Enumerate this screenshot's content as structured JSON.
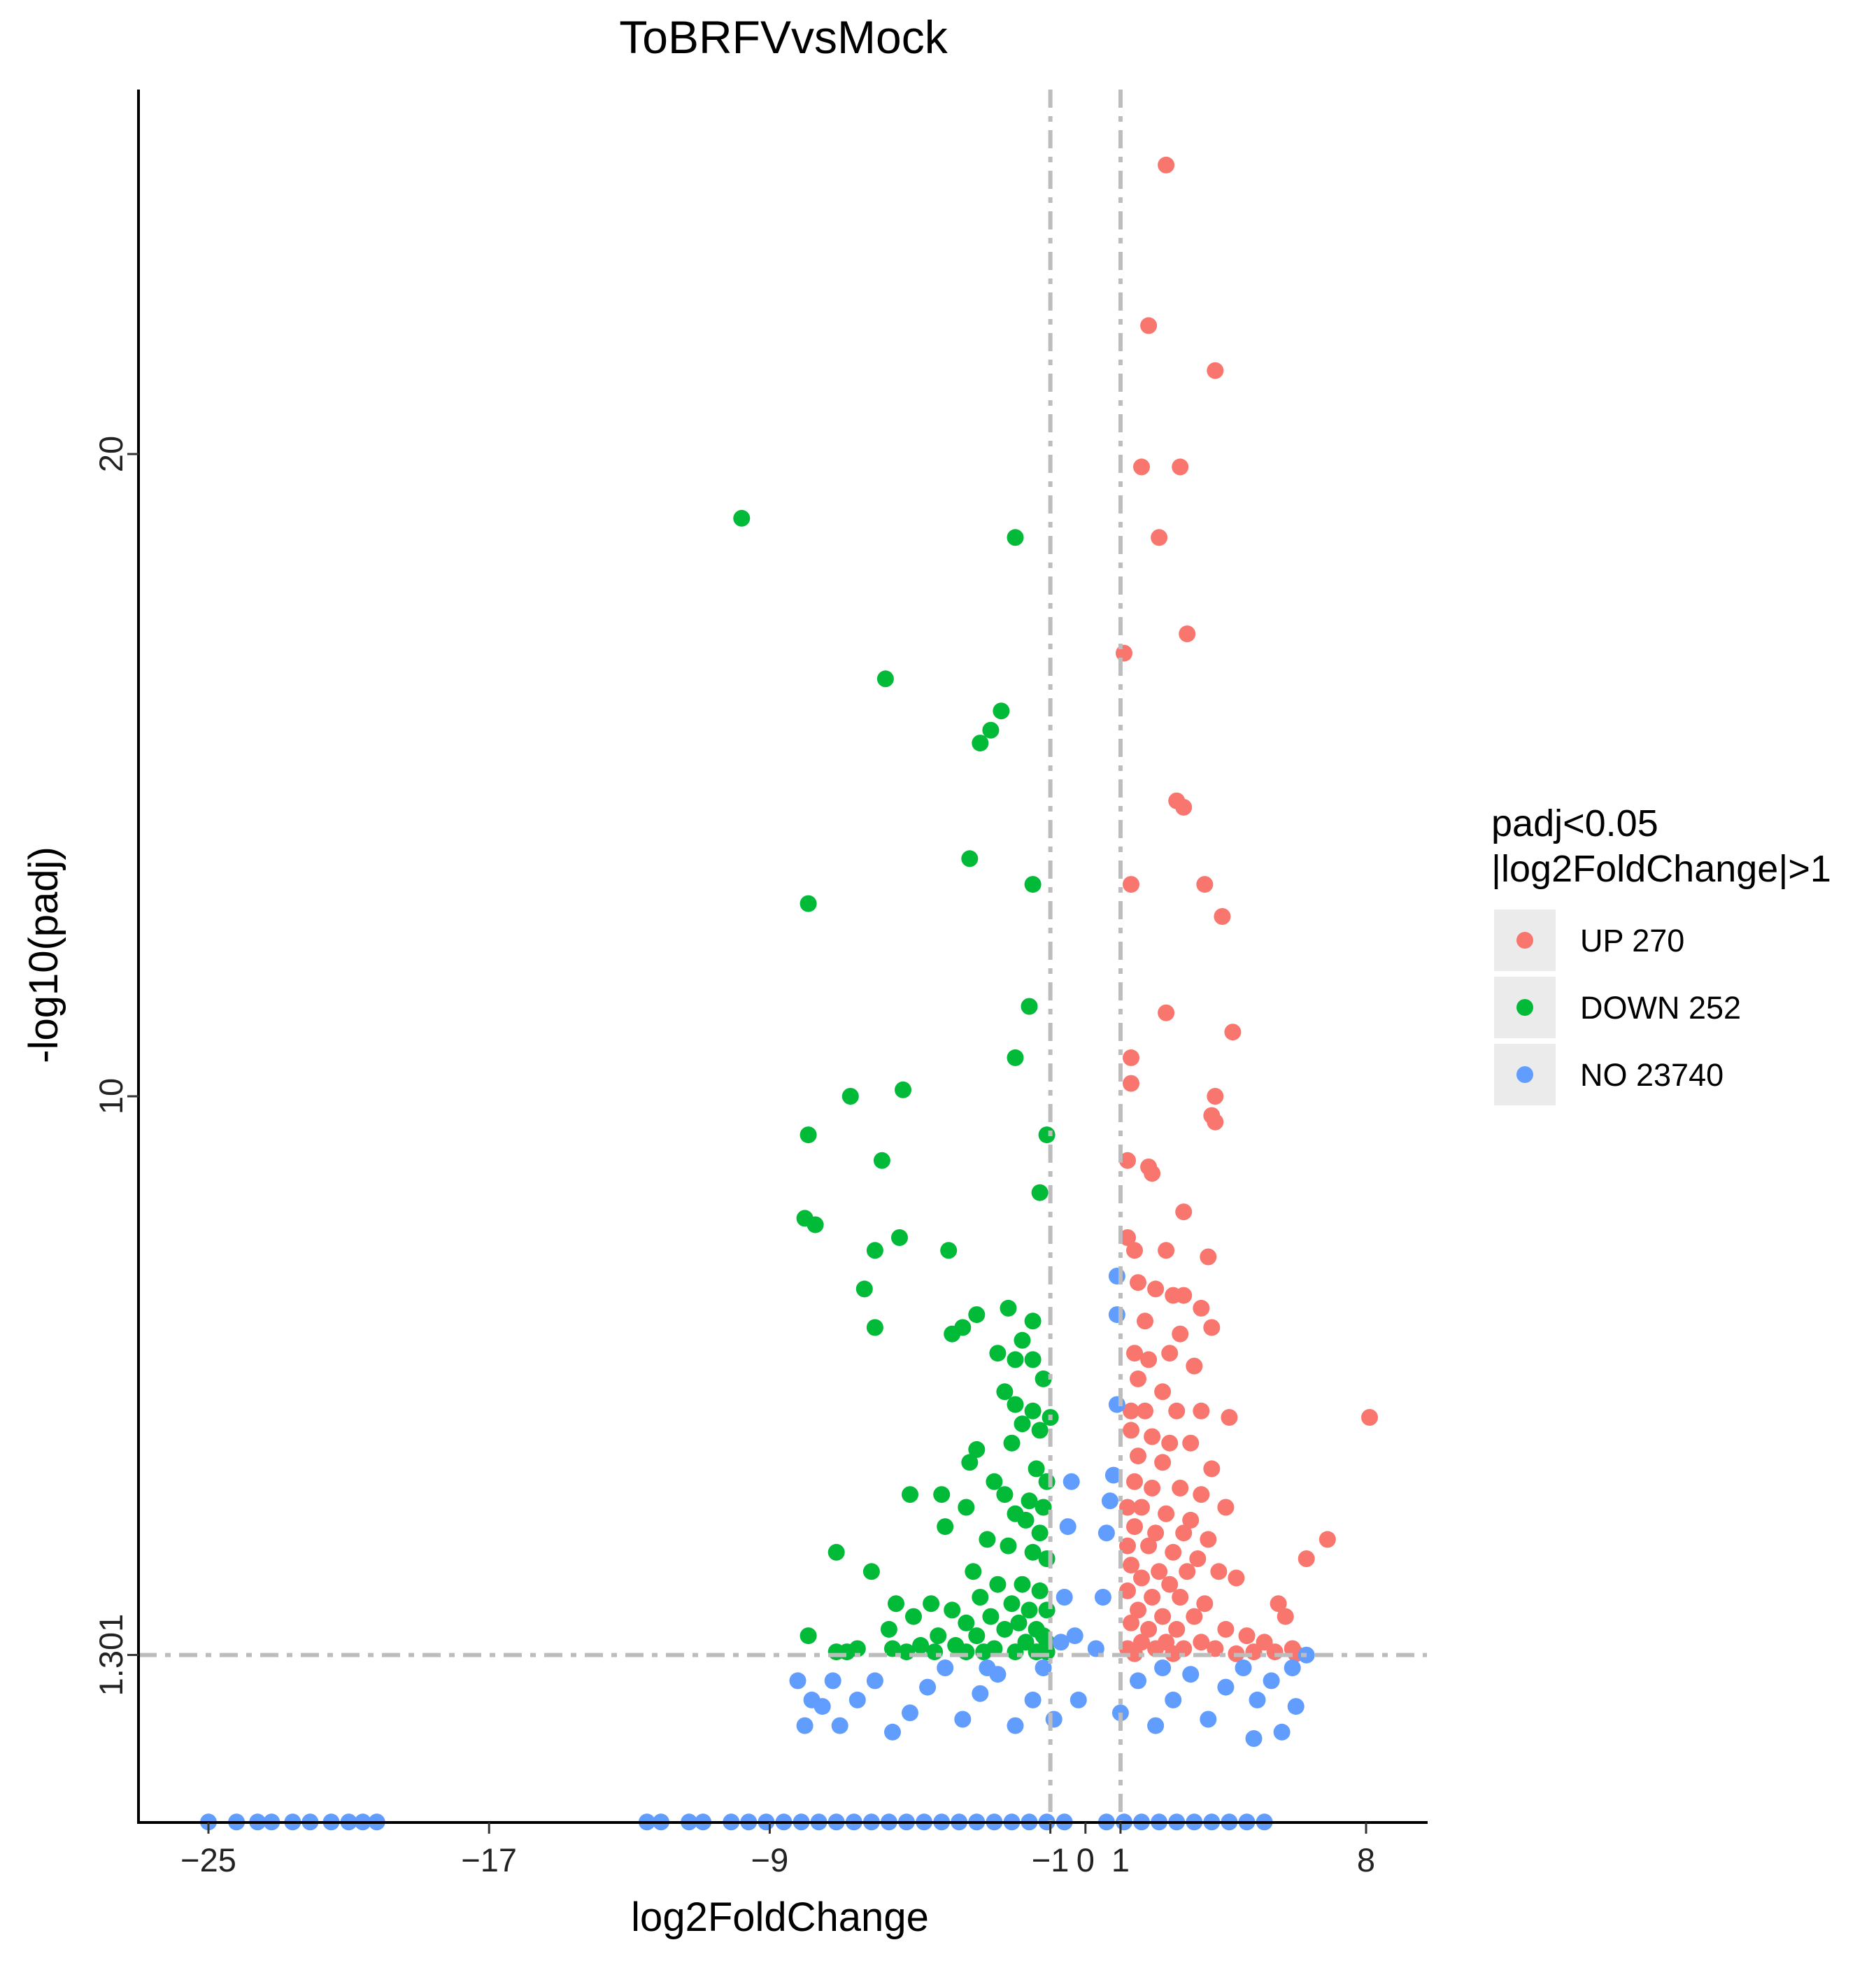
{
  "chart_data": {
    "type": "scatter",
    "title": "ToBRFVvsMock",
    "xlabel": "log2FoldChange",
    "ylabel": "-log10(padj)",
    "xlim": [
      -26.2,
      10.5
    ],
    "ylim": [
      -2.5,
      27.5
    ],
    "x_ticks": [
      -25,
      -17,
      -9,
      -1,
      0,
      1,
      8
    ],
    "x_tick_labels": [
      "−25",
      "−17",
      "−9",
      "−1",
      "0",
      "1",
      "8"
    ],
    "y_ticks": [
      1.301,
      10,
      20
    ],
    "y_tick_labels": [
      "1.301",
      "10",
      "20"
    ],
    "thresholds": {
      "log2FoldChange": [
        -1,
        1
      ],
      "neg_log10_padj": 1.301
    },
    "grid": false,
    "legend": {
      "title_lines": [
        "padj<0.05",
        "|log2FoldChange|>1"
      ],
      "placement": "right",
      "entries": [
        {
          "key": "UP",
          "label": "UP 270",
          "color": "#F8766D"
        },
        {
          "key": "DOWN",
          "label": "DOWN 252",
          "color": "#00BA38"
        },
        {
          "key": "NO",
          "label": "NO 23740",
          "color": "#619CFF"
        }
      ]
    },
    "series": [
      {
        "name": "UP 270",
        "color": "#F8766D",
        "points": [
          [
            2.3,
            24.5
          ],
          [
            1.8,
            22.0
          ],
          [
            3.7,
            21.3
          ],
          [
            1.6,
            19.8
          ],
          [
            2.7,
            19.8
          ],
          [
            2.1,
            18.7
          ],
          [
            2.9,
            17.2
          ],
          [
            1.1,
            16.9
          ],
          [
            2.6,
            14.6
          ],
          [
            2.8,
            14.5
          ],
          [
            1.3,
            13.3
          ],
          [
            3.4,
            13.3
          ],
          [
            3.9,
            12.8
          ],
          [
            2.3,
            11.3
          ],
          [
            4.2,
            11.0
          ],
          [
            1.3,
            10.6
          ],
          [
            1.3,
            10.2
          ],
          [
            3.7,
            10.0
          ],
          [
            3.6,
            9.7
          ],
          [
            3.7,
            9.6
          ],
          [
            1.2,
            9.0
          ],
          [
            1.8,
            8.9
          ],
          [
            1.9,
            8.8
          ],
          [
            2.8,
            8.2
          ],
          [
            1.2,
            7.8
          ],
          [
            1.4,
            7.6
          ],
          [
            2.3,
            7.6
          ],
          [
            3.5,
            7.5
          ],
          [
            1.5,
            7.1
          ],
          [
            2.0,
            7.0
          ],
          [
            2.5,
            6.9
          ],
          [
            2.8,
            6.9
          ],
          [
            3.3,
            6.7
          ],
          [
            1.7,
            6.5
          ],
          [
            2.7,
            6.3
          ],
          [
            3.6,
            6.4
          ],
          [
            1.4,
            6.0
          ],
          [
            2.4,
            6.0
          ],
          [
            1.8,
            5.9
          ],
          [
            3.1,
            5.8
          ],
          [
            1.5,
            5.6
          ],
          [
            2.2,
            5.4
          ],
          [
            1.3,
            5.1
          ],
          [
            1.7,
            5.1
          ],
          [
            2.6,
            5.1
          ],
          [
            3.3,
            5.1
          ],
          [
            4.1,
            5.0
          ],
          [
            8.1,
            5.0
          ],
          [
            1.3,
            4.8
          ],
          [
            1.9,
            4.7
          ],
          [
            2.4,
            4.6
          ],
          [
            3.0,
            4.6
          ],
          [
            1.5,
            4.4
          ],
          [
            2.2,
            4.3
          ],
          [
            3.6,
            4.2
          ],
          [
            1.4,
            4.0
          ],
          [
            1.9,
            3.9
          ],
          [
            2.7,
            3.9
          ],
          [
            3.3,
            3.8
          ],
          [
            1.2,
            3.6
          ],
          [
            1.6,
            3.6
          ],
          [
            2.3,
            3.5
          ],
          [
            3.0,
            3.4
          ],
          [
            4.0,
            3.6
          ],
          [
            1.4,
            3.3
          ],
          [
            2.0,
            3.2
          ],
          [
            2.8,
            3.2
          ],
          [
            3.5,
            3.1
          ],
          [
            6.9,
            3.1
          ],
          [
            1.2,
            3.0
          ],
          [
            1.8,
            3.0
          ],
          [
            2.5,
            2.9
          ],
          [
            3.2,
            2.8
          ],
          [
            6.3,
            2.8
          ],
          [
            1.3,
            2.7
          ],
          [
            2.1,
            2.6
          ],
          [
            2.9,
            2.6
          ],
          [
            3.8,
            2.6
          ],
          [
            1.6,
            2.5
          ],
          [
            2.4,
            2.4
          ],
          [
            4.3,
            2.5
          ],
          [
            1.2,
            2.3
          ],
          [
            1.9,
            2.2
          ],
          [
            2.7,
            2.2
          ],
          [
            3.4,
            2.1
          ],
          [
            5.5,
            2.1
          ],
          [
            1.5,
            2.0
          ],
          [
            2.2,
            1.9
          ],
          [
            3.1,
            1.9
          ],
          [
            5.7,
            1.9
          ],
          [
            1.3,
            1.8
          ],
          [
            1.8,
            1.7
          ],
          [
            2.6,
            1.7
          ],
          [
            4.0,
            1.7
          ],
          [
            4.6,
            1.6
          ],
          [
            1.6,
            1.5
          ],
          [
            2.3,
            1.5
          ],
          [
            3.3,
            1.5
          ],
          [
            5.1,
            1.5
          ],
          [
            5.9,
            1.4
          ],
          [
            1.2,
            1.4
          ],
          [
            2.0,
            1.4
          ],
          [
            2.8,
            1.4
          ],
          [
            3.7,
            1.4
          ],
          [
            4.8,
            1.35
          ],
          [
            5.4,
            1.35
          ],
          [
            1.4,
            1.32
          ],
          [
            2.5,
            1.32
          ],
          [
            4.3,
            1.32
          ],
          [
            6.0,
            1.32
          ]
        ]
      },
      {
        "name": "DOWN 252",
        "color": "#00BA38",
        "points": [
          [
            -9.8,
            19.0
          ],
          [
            -2.0,
            18.7
          ],
          [
            -5.7,
            16.5
          ],
          [
            -2.4,
            16.0
          ],
          [
            -2.7,
            15.7
          ],
          [
            -3.0,
            15.5
          ],
          [
            -7.9,
            13.0
          ],
          [
            -3.3,
            13.7
          ],
          [
            -1.5,
            13.3
          ],
          [
            -1.6,
            11.4
          ],
          [
            -2.0,
            10.6
          ],
          [
            -5.2,
            10.1
          ],
          [
            -6.7,
            10.0
          ],
          [
            -7.9,
            9.4
          ],
          [
            -1.1,
            9.4
          ],
          [
            -5.8,
            9.0
          ],
          [
            -1.3,
            8.5
          ],
          [
            -8.0,
            8.1
          ],
          [
            -7.7,
            8.0
          ],
          [
            -5.3,
            7.8
          ],
          [
            -6.0,
            7.6
          ],
          [
            -3.9,
            7.6
          ],
          [
            -6.3,
            7.0
          ],
          [
            -2.2,
            6.7
          ],
          [
            -3.1,
            6.6
          ],
          [
            -1.5,
            6.5
          ],
          [
            -6.0,
            6.4
          ],
          [
            -3.5,
            6.4
          ],
          [
            -3.8,
            6.3
          ],
          [
            -1.8,
            6.2
          ],
          [
            -2.5,
            6.0
          ],
          [
            -2.0,
            5.9
          ],
          [
            -1.5,
            5.9
          ],
          [
            -1.2,
            5.6
          ],
          [
            -2.3,
            5.4
          ],
          [
            -2.0,
            5.2
          ],
          [
            -1.5,
            5.1
          ],
          [
            -1.0,
            5.0
          ],
          [
            -1.8,
            4.9
          ],
          [
            -1.3,
            4.8
          ],
          [
            -2.1,
            4.6
          ],
          [
            -3.1,
            4.5
          ],
          [
            -3.3,
            4.3
          ],
          [
            -1.4,
            4.2
          ],
          [
            -1.1,
            4.0
          ],
          [
            -2.6,
            4.0
          ],
          [
            -4.1,
            3.8
          ],
          [
            -5.0,
            3.8
          ],
          [
            -2.3,
            3.8
          ],
          [
            -1.6,
            3.7
          ],
          [
            -1.2,
            3.6
          ],
          [
            -3.4,
            3.6
          ],
          [
            -2.0,
            3.5
          ],
          [
            -1.7,
            3.4
          ],
          [
            -4.0,
            3.3
          ],
          [
            -1.3,
            3.2
          ],
          [
            -2.8,
            3.1
          ],
          [
            -2.2,
            3.0
          ],
          [
            -1.5,
            2.9
          ],
          [
            -1.1,
            2.8
          ],
          [
            -7.1,
            2.9
          ],
          [
            -6.1,
            2.6
          ],
          [
            -3.2,
            2.6
          ],
          [
            -2.5,
            2.4
          ],
          [
            -1.8,
            2.4
          ],
          [
            -1.3,
            2.3
          ],
          [
            -3.0,
            2.2
          ],
          [
            -2.1,
            2.1
          ],
          [
            -1.6,
            2.0
          ],
          [
            -1.1,
            2.0
          ],
          [
            -5.4,
            2.1
          ],
          [
            -4.4,
            2.1
          ],
          [
            -3.8,
            2.0
          ],
          [
            -2.7,
            1.9
          ],
          [
            -1.9,
            1.8
          ],
          [
            -1.4,
            1.7
          ],
          [
            -4.9,
            1.9
          ],
          [
            -3.4,
            1.8
          ],
          [
            -2.3,
            1.7
          ],
          [
            -1.2,
            1.6
          ],
          [
            -5.6,
            1.7
          ],
          [
            -4.2,
            1.6
          ],
          [
            -3.1,
            1.6
          ],
          [
            -1.7,
            1.5
          ],
          [
            -1.1,
            1.5
          ],
          [
            -7.9,
            1.6
          ],
          [
            -6.5,
            1.4
          ],
          [
            -5.5,
            1.4
          ],
          [
            -4.7,
            1.45
          ],
          [
            -3.7,
            1.45
          ],
          [
            -2.6,
            1.4
          ],
          [
            -2.0,
            1.35
          ],
          [
            -1.4,
            1.35
          ],
          [
            -7.1,
            1.35
          ],
          [
            -6.8,
            1.35
          ],
          [
            -5.1,
            1.35
          ],
          [
            -4.3,
            1.35
          ],
          [
            -3.4,
            1.35
          ],
          [
            -2.9,
            1.35
          ],
          [
            -1.1,
            1.35
          ]
        ]
      },
      {
        "name": "NO 23740",
        "color": "#619CFF",
        "points": [
          [
            -25.0,
            -1.3
          ],
          [
            -24.2,
            -1.3
          ],
          [
            -23.6,
            -1.3
          ],
          [
            -23.2,
            -1.3
          ],
          [
            -22.6,
            -1.3
          ],
          [
            -22.1,
            -1.3
          ],
          [
            -21.5,
            -1.3
          ],
          [
            -21.0,
            -1.3
          ],
          [
            -20.6,
            -1.3
          ],
          [
            -20.2,
            -1.3
          ],
          [
            -12.5,
            -1.3
          ],
          [
            -12.1,
            -1.3
          ],
          [
            -11.3,
            -1.3
          ],
          [
            -10.9,
            -1.3
          ],
          [
            -10.1,
            -1.3
          ],
          [
            -9.6,
            -1.3
          ],
          [
            -9.1,
            -1.3
          ],
          [
            -8.6,
            -1.3
          ],
          [
            -8.1,
            -1.3
          ],
          [
            -7.6,
            -1.3
          ],
          [
            -7.1,
            -1.3
          ],
          [
            -6.6,
            -1.3
          ],
          [
            -6.1,
            -1.3
          ],
          [
            -5.6,
            -1.3
          ],
          [
            -5.1,
            -1.3
          ],
          [
            -4.6,
            -1.3
          ],
          [
            -4.1,
            -1.3
          ],
          [
            -3.6,
            -1.3
          ],
          [
            -3.1,
            -1.3
          ],
          [
            -2.6,
            -1.3
          ],
          [
            -2.1,
            -1.3
          ],
          [
            -1.6,
            -1.3
          ],
          [
            -1.1,
            -1.3
          ],
          [
            -0.6,
            -1.3
          ],
          [
            0.6,
            -1.3
          ],
          [
            1.1,
            -1.3
          ],
          [
            1.6,
            -1.3
          ],
          [
            2.1,
            -1.3
          ],
          [
            2.6,
            -1.3
          ],
          [
            3.1,
            -1.3
          ],
          [
            3.6,
            -1.3
          ],
          [
            4.1,
            -1.3
          ],
          [
            4.6,
            -1.3
          ],
          [
            5.1,
            -1.3
          ],
          [
            -8.2,
            0.9
          ],
          [
            -7.5,
            0.5
          ],
          [
            -7.0,
            0.2
          ],
          [
            -6.5,
            0.6
          ],
          [
            -6.0,
            0.9
          ],
          [
            -5.5,
            0.1
          ],
          [
            -5.0,
            0.4
          ],
          [
            -4.5,
            0.8
          ],
          [
            -4.0,
            1.1
          ],
          [
            -3.5,
            0.3
          ],
          [
            -3.0,
            0.7
          ],
          [
            -2.5,
            1.0
          ],
          [
            -2.0,
            0.2
          ],
          [
            -1.5,
            0.6
          ],
          [
            -1.2,
            1.1
          ],
          [
            -0.9,
            0.3
          ],
          [
            -0.7,
            1.5
          ],
          [
            -0.6,
            2.2
          ],
          [
            -0.5,
            3.3
          ],
          [
            -0.4,
            4.0
          ],
          [
            -0.3,
            1.6
          ],
          [
            -0.2,
            0.6
          ],
          [
            0.3,
            1.4
          ],
          [
            0.5,
            2.2
          ],
          [
            0.6,
            3.2
          ],
          [
            0.8,
            4.1
          ],
          [
            0.9,
            6.6
          ],
          [
            0.9,
            7.2
          ],
          [
            0.9,
            5.2
          ],
          [
            0.7,
            3.7
          ],
          [
            1.0,
            0.4
          ],
          [
            1.5,
            0.9
          ],
          [
            2.0,
            0.2
          ],
          [
            2.5,
            0.6
          ],
          [
            3.0,
            1.0
          ],
          [
            3.5,
            0.3
          ],
          [
            4.0,
            0.8
          ],
          [
            4.5,
            1.1
          ],
          [
            4.9,
            0.6
          ],
          [
            5.3,
            0.9
          ],
          [
            5.6,
            0.1
          ],
          [
            5.9,
            1.1
          ],
          [
            6.3,
            1.3
          ],
          [
            -8.0,
            0.2
          ],
          [
            -7.8,
            0.6
          ],
          [
            -7.2,
            0.9
          ],
          [
            6.0,
            0.5
          ],
          [
            4.8,
            0.0
          ],
          [
            2.2,
            1.1
          ],
          [
            -2.8,
            1.1
          ]
        ]
      }
    ]
  }
}
